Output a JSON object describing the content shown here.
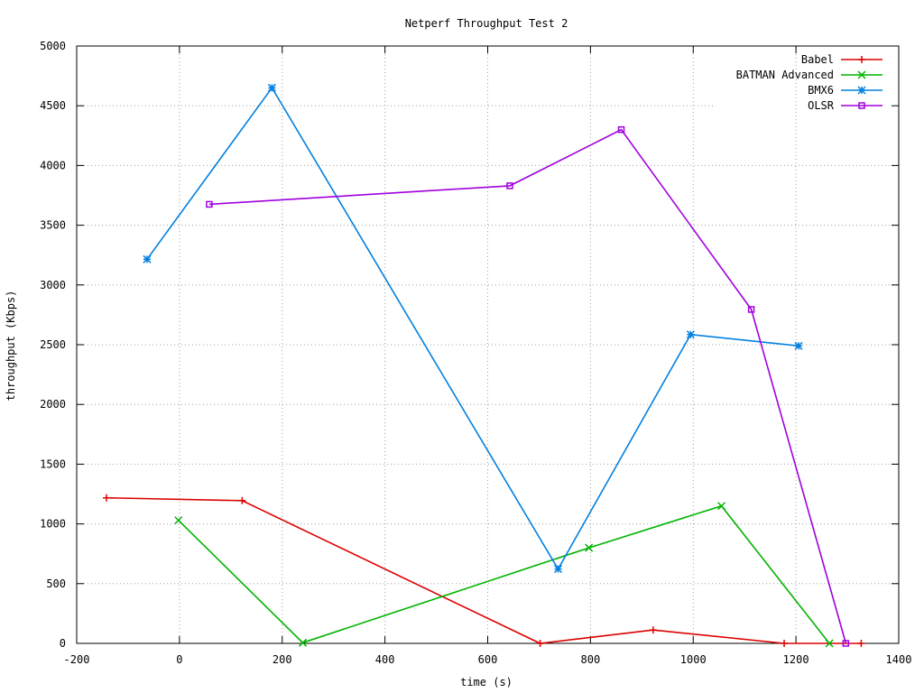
{
  "chart_data": {
    "type": "line",
    "title": "Netperf Throughput Test 2",
    "xlabel": "time (s)",
    "ylabel": "throughput (Kbps)",
    "xlim": [
      -200,
      1400
    ],
    "ylim": [
      0,
      5000
    ],
    "xticks": [
      -200,
      0,
      200,
      400,
      600,
      800,
      1000,
      1200,
      1400
    ],
    "yticks": [
      0,
      500,
      1000,
      1500,
      2000,
      2500,
      3000,
      3500,
      4000,
      4500,
      5000
    ],
    "grid": true,
    "legend_position": "top-right",
    "series": [
      {
        "name": "Babel",
        "color": "#dd0000",
        "marker": "plus",
        "points": [
          [
            -142,
            1218
          ],
          [
            122,
            1195
          ],
          [
            702,
            0
          ],
          [
            922,
            112
          ],
          [
            1177,
            0
          ],
          [
            1327,
            0
          ]
        ]
      },
      {
        "name": "BATMAN Advanced",
        "color": "#00b400",
        "marker": "cross",
        "points": [
          [
            -2,
            1030
          ],
          [
            240,
            5
          ],
          [
            797,
            800
          ],
          [
            1055,
            1150
          ],
          [
            1265,
            0
          ]
        ]
      },
      {
        "name": "BMX6",
        "color": "#0080e0",
        "marker": "star",
        "points": [
          [
            -63,
            3215
          ],
          [
            180,
            4650
          ],
          [
            737,
            622
          ],
          [
            995,
            2585
          ],
          [
            1205,
            2490
          ]
        ]
      },
      {
        "name": "OLSR",
        "color": "#a000dd",
        "marker": "box",
        "points": [
          [
            58,
            3675
          ],
          [
            643,
            3830
          ],
          [
            860,
            4300
          ],
          [
            1113,
            2795
          ],
          [
            1297,
            0
          ]
        ]
      }
    ]
  }
}
